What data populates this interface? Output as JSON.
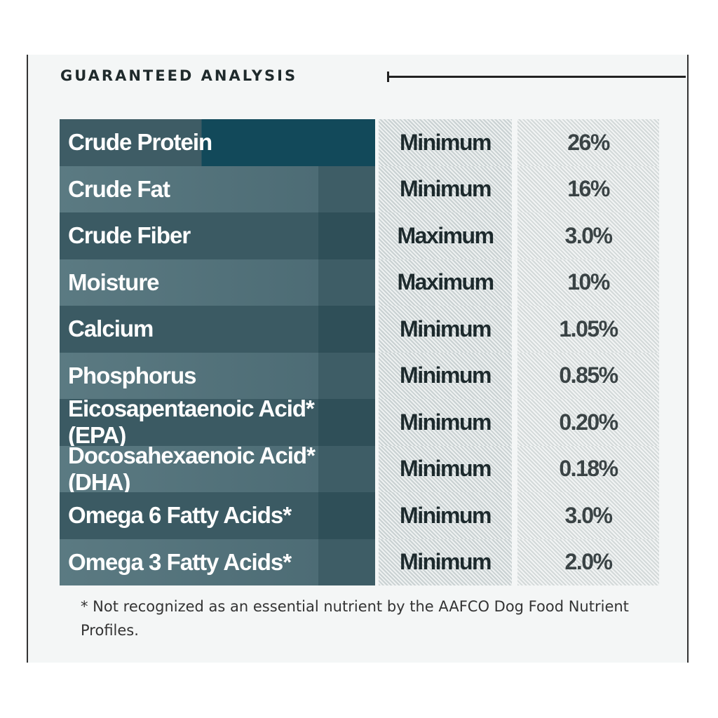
{
  "title": "GUARANTEED ANALYSIS",
  "rows": [
    {
      "nutrient": "Crude Protein",
      "type": "Minimum",
      "value": "26%"
    },
    {
      "nutrient": "Crude Fat",
      "type": "Minimum",
      "value": "16%"
    },
    {
      "nutrient": "Crude Fiber",
      "type": "Maximum",
      "value": "3.0%"
    },
    {
      "nutrient": "Moisture",
      "type": "Maximum",
      "value": "10%"
    },
    {
      "nutrient": "Calcium",
      "type": "Minimum",
      "value": "1.05%"
    },
    {
      "nutrient": "Phosphorus",
      "type": "Minimum",
      "value": "0.85%"
    },
    {
      "nutrient": "Eicosapentaenoic Acid* (EPA)",
      "type": "Minimum",
      "value": "0.20%"
    },
    {
      "nutrient": "Docosahexaenoic Acid* (DHA)",
      "type": "Minimum",
      "value": "0.18%"
    },
    {
      "nutrient": "Omega 6 Fatty Acids*",
      "type": "Minimum",
      "value": "3.0%"
    },
    {
      "nutrient": "Omega 3 Fatty Acids*",
      "type": "Minimum",
      "value": "2.0%"
    }
  ],
  "footnote": "* Not recognized as an essential nutrient by the AAFCO Dog Food Nutrient Profiles."
}
